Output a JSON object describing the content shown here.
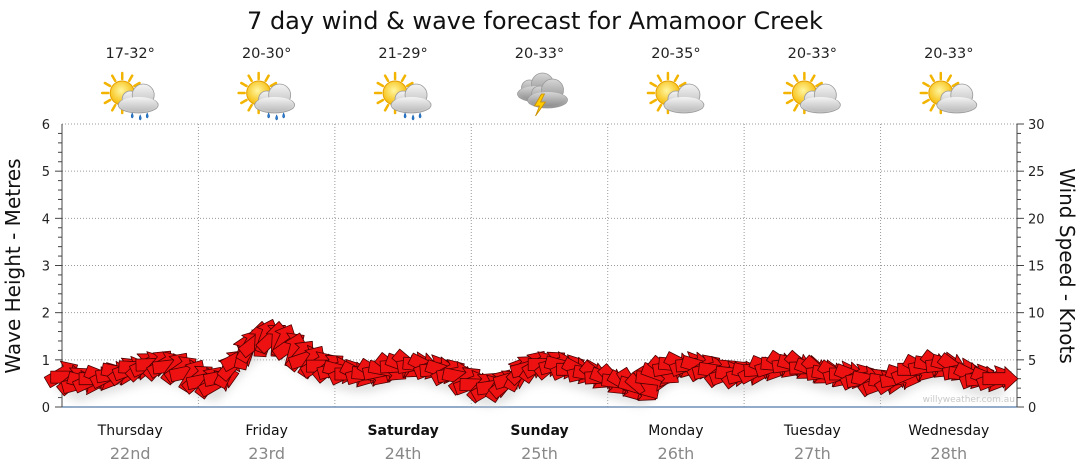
{
  "chart_data": {
    "type": "line",
    "title": "7 day wind & wave forecast for Amamoor Creek",
    "ylabel_left": "Wave Height - Metres",
    "ylabel_right": "Wind Speed - Knots",
    "ylim_left": [
      0,
      6
    ],
    "ylim_right": [
      0,
      30
    ],
    "yticks_left": [
      "0",
      "1",
      "2",
      "3",
      "4",
      "5",
      "6"
    ],
    "yticks_right": [
      "0",
      "5",
      "10",
      "15",
      "20",
      "25",
      "30"
    ],
    "grid": true,
    "watermark": "willyweather.com.au",
    "days": [
      {
        "name": "Thursday",
        "date": "22nd",
        "temp": "17-32°",
        "icon": "sun-cloud-rain-icon",
        "bold": false
      },
      {
        "name": "Friday",
        "date": "23rd",
        "temp": "20-30°",
        "icon": "sun-cloud-rain-icon",
        "bold": false
      },
      {
        "name": "Saturday",
        "date": "24th",
        "temp": "21-29°",
        "icon": "sun-cloud-rain-icon",
        "bold": true
      },
      {
        "name": "Sunday",
        "date": "25th",
        "temp": "20-33°",
        "icon": "storm-icon",
        "bold": true
      },
      {
        "name": "Monday",
        "date": "26th",
        "temp": "20-35°",
        "icon": "sun-cloud-icon",
        "bold": false
      },
      {
        "name": "Tuesday",
        "date": "27th",
        "temp": "20-33°",
        "icon": "sun-cloud-icon",
        "bold": false
      },
      {
        "name": "Wednesday",
        "date": "28th",
        "temp": "20-33°",
        "icon": "sun-cloud-icon",
        "bold": false
      }
    ],
    "wind_series": {
      "name": "Wind Speed (knots)",
      "color": "#ee1111",
      "x_hours": [
        0,
        3,
        6,
        9,
        12,
        15,
        18,
        21,
        24,
        27,
        30,
        33,
        36,
        39,
        42,
        45,
        48,
        51,
        54,
        57,
        60,
        63,
        66,
        69,
        72,
        75,
        78,
        81,
        84,
        87,
        90,
        93,
        96,
        99,
        102,
        105,
        108,
        111,
        114,
        117,
        120,
        123,
        126,
        129,
        132,
        135,
        138,
        141,
        144,
        147,
        150,
        153,
        156,
        159,
        162,
        165
      ],
      "values": [
        3.5,
        2.5,
        3,
        3.5,
        4,
        4.5,
        4.5,
        4,
        3,
        2.5,
        4.5,
        6.5,
        7.5,
        7,
        5.5,
        4.5,
        4,
        3.5,
        3.5,
        4,
        4.5,
        4.5,
        4,
        3.5,
        2.5,
        2,
        2.5,
        4,
        4.5,
        4.5,
        4,
        3.5,
        3,
        2.5,
        2,
        3.5,
        4.5,
        4.5,
        4,
        3.5,
        3.5,
        4,
        4.5,
        4.5,
        4,
        3.5,
        3.5,
        3,
        2.5,
        3,
        4,
        4.5,
        4.5,
        3.5,
        3,
        3
      ],
      "direction_deg": [
        60,
        75,
        90,
        80,
        70,
        65,
        60,
        55,
        50,
        60,
        40,
        30,
        20,
        25,
        40,
        60,
        75,
        90,
        95,
        100,
        110,
        95,
        85,
        80,
        70,
        60,
        50,
        45,
        60,
        75,
        90,
        100,
        110,
        120,
        130,
        110,
        95,
        85,
        75,
        70,
        75,
        85,
        95,
        105,
        110,
        100,
        90,
        80,
        70,
        80,
        90,
        100,
        105,
        95,
        85,
        90
      ]
    }
  }
}
